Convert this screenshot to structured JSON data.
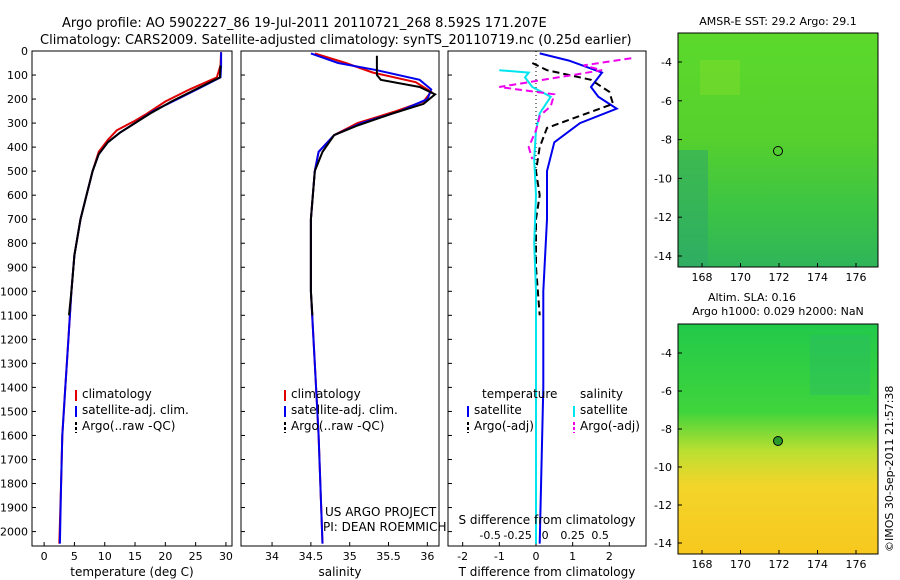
{
  "title_line1": "Argo profile: AO 5902227_86 19-Jul-2011 20110721_268 8.592S 171.207E",
  "title_line2": "Climatology: CARS2009. Satellite-adjusted climatology: synTS_20110719.nc (0.25d earlier)",
  "project_line1": "US ARGO PROJECT",
  "project_line2": "PI: DEAN ROEMMICH",
  "side_stamp": "©IMOS 30-Sep-2011 21:57:38",
  "colors": {
    "red": "#e00000",
    "blue": "#0000ee",
    "black": "#000000",
    "cyan": "#00e5ee",
    "magenta": "#ee00ee"
  },
  "chart_data": [
    {
      "id": "temperature",
      "type": "line",
      "xlabel": "temperature (deg C)",
      "ylabel": "",
      "xlim": [
        -2,
        31
      ],
      "ylim": [
        2060,
        0
      ],
      "x_ticks": [
        0,
        5,
        10,
        15,
        20,
        25,
        30
      ],
      "y_ticks": [
        0,
        100,
        200,
        300,
        400,
        500,
        600,
        700,
        800,
        900,
        1000,
        1100,
        1200,
        1300,
        1400,
        1500,
        1600,
        1700,
        1800,
        1900,
        2000
      ],
      "legend": [
        "climatology",
        "satellite-adj. clim.",
        "Argo(..raw -QC)"
      ],
      "series": [
        {
          "name": "climatology",
          "color": "red",
          "points": [
            [
              29.2,
              5
            ],
            [
              29.1,
              60
            ],
            [
              28.5,
              110
            ],
            [
              24,
              160
            ],
            [
              20,
              210
            ],
            [
              17,
              260
            ],
            [
              15,
              290
            ],
            [
              12,
              330
            ],
            [
              10.5,
              370
            ],
            [
              9,
              420
            ],
            [
              8,
              500
            ],
            [
              7,
              600
            ],
            [
              6,
              700
            ],
            [
              5,
              850
            ],
            [
              4.5,
              1000
            ],
            [
              4,
              1200
            ],
            [
              3.5,
              1400
            ],
            [
              3,
              1600
            ],
            [
              2.8,
              1800
            ],
            [
              2.5,
              2050
            ]
          ]
        },
        {
          "name": "satellite-adj. clim.",
          "color": "blue",
          "points": [
            [
              29.2,
              5
            ],
            [
              29.2,
              60
            ],
            [
              29.1,
              110
            ],
            [
              26,
              150
            ],
            [
              22,
              200
            ],
            [
              18,
              250
            ],
            [
              15,
              300
            ],
            [
              12.5,
              340
            ],
            [
              10.5,
              380
            ],
            [
              9,
              430
            ],
            [
              8,
              500
            ],
            [
              7,
              600
            ],
            [
              6,
              700
            ],
            [
              5,
              850
            ],
            [
              4.5,
              1000
            ],
            [
              4,
              1200
            ],
            [
              3.5,
              1400
            ],
            [
              3,
              1600
            ],
            [
              2.8,
              1800
            ],
            [
              2.6,
              2050
            ]
          ]
        },
        {
          "name": "Argo(..raw -QC)",
          "color": "black",
          "points": [
            [
              29.1,
              60
            ],
            [
              29.0,
              110
            ],
            [
              25,
              160
            ],
            [
              21,
              210
            ],
            [
              17.5,
              260
            ],
            [
              15,
              300
            ],
            [
              12.5,
              340
            ],
            [
              10.5,
              380
            ],
            [
              9,
              430
            ],
            [
              8,
              500
            ],
            [
              7,
              600
            ],
            [
              6,
              700
            ],
            [
              5,
              850
            ],
            [
              4.5,
              1000
            ],
            [
              4.1,
              1100
            ]
          ]
        }
      ]
    },
    {
      "id": "salinity",
      "type": "line",
      "xlabel": "salinity",
      "xlim": [
        33.6,
        36.15
      ],
      "ylim": [
        2060,
        0
      ],
      "x_ticks": [
        34,
        34.5,
        35,
        35.5,
        36
      ],
      "legend": [
        "climatology",
        "satellite-adj. clim.",
        "Argo(..raw -QC)"
      ],
      "series": [
        {
          "name": "climatology",
          "color": "red",
          "points": [
            [
              34.55,
              10
            ],
            [
              34.95,
              50
            ],
            [
              35.3,
              90
            ],
            [
              35.85,
              130
            ],
            [
              36.05,
              170
            ],
            [
              35.95,
              210
            ],
            [
              35.6,
              250
            ],
            [
              35.1,
              300
            ],
            [
              34.8,
              350
            ],
            [
              34.6,
              420
            ],
            [
              34.55,
              500
            ],
            [
              34.5,
              700
            ],
            [
              34.5,
              1000
            ],
            [
              34.55,
              1300
            ],
            [
              34.6,
              1600
            ],
            [
              34.65,
              2050
            ]
          ]
        },
        {
          "name": "satellite-adj. clim.",
          "color": "blue",
          "points": [
            [
              34.5,
              10
            ],
            [
              34.85,
              50
            ],
            [
              35.35,
              80
            ],
            [
              35.9,
              120
            ],
            [
              36.05,
              160
            ],
            [
              36.0,
              200
            ],
            [
              35.65,
              250
            ],
            [
              35.15,
              300
            ],
            [
              34.8,
              350
            ],
            [
              34.6,
              420
            ],
            [
              34.55,
              500
            ],
            [
              34.5,
              700
            ],
            [
              34.5,
              1000
            ],
            [
              34.55,
              1300
            ],
            [
              34.6,
              1600
            ],
            [
              34.65,
              2050
            ]
          ]
        },
        {
          "name": "Argo(..raw -QC)",
          "color": "black",
          "points": [
            [
              35.35,
              20
            ],
            [
              35.35,
              100
            ],
            [
              35.4,
              120
            ],
            [
              35.9,
              150
            ],
            [
              36.1,
              180
            ],
            [
              35.95,
              220
            ],
            [
              35.55,
              260
            ],
            [
              35.1,
              310
            ],
            [
              34.8,
              350
            ],
            [
              34.65,
              420
            ],
            [
              34.55,
              500
            ],
            [
              34.5,
              700
            ],
            [
              34.5,
              1000
            ],
            [
              34.52,
              1100
            ]
          ]
        }
      ]
    },
    {
      "id": "difference",
      "type": "line",
      "xlabel": "T difference from climatology",
      "xlabel_top": "S difference from climatology",
      "xlim": [
        -2.4,
        3.0
      ],
      "ylim": [
        2060,
        0
      ],
      "x_ticks": [
        -2,
        -1,
        0,
        1,
        2
      ],
      "s_ticks": [
        "-0.5",
        "-0.25",
        "0",
        "0.25",
        "0.5"
      ],
      "legend_temperature": [
        "temperature",
        "satellite",
        "Argo(-adj)"
      ],
      "legend_salinity": [
        "salinity",
        "satellite",
        "Argo(-adj)"
      ],
      "series": [
        {
          "name": "satellite",
          "color": "blue",
          "points": [
            [
              0.1,
              10
            ],
            [
              0.9,
              40
            ],
            [
              1.8,
              90
            ],
            [
              1.5,
              150
            ],
            [
              1.7,
              190
            ],
            [
              2.2,
              240
            ],
            [
              1.2,
              300
            ],
            [
              0.5,
              380
            ],
            [
              0.3,
              500
            ],
            [
              0.3,
              700
            ],
            [
              0.2,
              1000
            ],
            [
              0.2,
              1400
            ],
            [
              0.1,
              2050
            ]
          ]
        },
        {
          "name": "Argo(-adj)",
          "color": "black",
          "dash": true,
          "points": [
            [
              -0.1,
              50
            ],
            [
              0.3,
              80
            ],
            [
              1.5,
              120
            ],
            [
              2.0,
              170
            ],
            [
              2.1,
              220
            ],
            [
              1.2,
              270
            ],
            [
              0.3,
              320
            ],
            [
              0.1,
              400
            ],
            [
              0.0,
              500
            ],
            [
              0.1,
              600
            ],
            [
              0.0,
              700
            ],
            [
              0.0,
              900
            ],
            [
              0.1,
              1100
            ]
          ]
        },
        {
          "name": "satellite",
          "color": "cyan",
          "points": [
            [
              -1.0,
              80
            ],
            [
              -0.2,
              90
            ],
            [
              -0.3,
              110
            ],
            [
              -0.1,
              150
            ],
            [
              0.4,
              190
            ],
            [
              0.1,
              260
            ],
            [
              0.0,
              330
            ],
            [
              -0.05,
              450
            ],
            [
              0.0,
              600
            ],
            [
              -0.05,
              800
            ],
            [
              0.0,
              1000
            ],
            [
              0.0,
              1300
            ],
            [
              0.0,
              1600
            ],
            [
              0.0,
              2050
            ]
          ]
        },
        {
          "name": "Argo(-adj)",
          "color": "magenta",
          "dash": true,
          "points": [
            [
              2.6,
              30
            ],
            [
              1.3,
              60
            ],
            [
              1.8,
              80
            ],
            [
              -1.0,
              150
            ],
            [
              0.5,
              180
            ],
            [
              0.4,
              230
            ],
            [
              0.1,
              270
            ],
            [
              0.0,
              330
            ],
            [
              -0.2,
              400
            ],
            [
              -0.1,
              450
            ]
          ]
        }
      ]
    }
  ],
  "maps": [
    {
      "id": "sst-map",
      "title": "AMSR-E SST: 29.2  Argo: 29.1",
      "x_ticks": [
        "168",
        "170",
        "172",
        "174",
        "176"
      ],
      "y_ticks": [
        "-4",
        "-6",
        "-8",
        "-10",
        "-12",
        "-14"
      ],
      "marker": "open circle"
    },
    {
      "id": "sla-map",
      "title": "Altim. SLA: 0.16",
      "subtitle": "Argo h1000: 0.029 h2000: NaN",
      "x_ticks": [
        "168",
        "170",
        "172",
        "174",
        "176"
      ],
      "y_ticks": [
        "-4",
        "-6",
        "-8",
        "-10",
        "-12",
        "-14"
      ],
      "marker": "filled circle"
    }
  ]
}
